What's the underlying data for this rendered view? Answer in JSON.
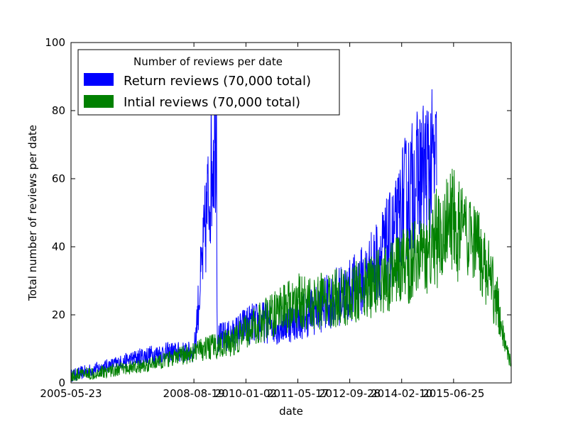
{
  "chart_data": {
    "type": "line",
    "xlabel": "date",
    "ylabel": "Total number of reviews per date",
    "xlim": [
      "2005-05-23",
      "2016-12-31"
    ],
    "ylim": [
      0,
      100
    ],
    "x_ticks": [
      "2005-05-23",
      "2008-08-19",
      "2010-01-02",
      "2011-05-17",
      "2012-09-28",
      "2014-02-10",
      "2015-06-25"
    ],
    "y_ticks": [
      0,
      20,
      40,
      60,
      80,
      100
    ],
    "grid": false,
    "legend": {
      "title": "Number of reviews per date",
      "placement": "top-left"
    },
    "series": [
      {
        "name": "Return reviews (70,000 total)",
        "color": "#0000ff",
        "x": [
          "2005-05-23",
          "2006-01-01",
          "2006-09-01",
          "2007-05-01",
          "2008-01-01",
          "2008-08-19",
          "2009-03-25",
          "2009-04-01",
          "2009-09-01",
          "2010-01-02",
          "2010-06-01",
          "2010-12-01",
          "2011-05-17",
          "2011-12-01",
          "2012-05-01",
          "2012-09-28",
          "2013-03-01",
          "2013-08-01",
          "2014-01-01",
          "2014-02-10",
          "2014-06-01",
          "2014-09-01",
          "2014-11-30",
          "2015-01-15"
        ],
        "values": [
          2,
          4,
          6,
          8,
          9,
          9,
          80,
          13,
          14,
          17,
          18,
          17,
          19,
          22,
          25,
          27,
          31,
          38,
          45,
          52,
          58,
          62,
          64,
          63
        ]
      },
      {
        "name": "Intial reviews (70,000 total)",
        "color": "#008000",
        "x": [
          "2005-05-23",
          "2006-01-01",
          "2006-09-01",
          "2007-05-01",
          "2008-01-01",
          "2008-08-19",
          "2009-04-01",
          "2009-09-01",
          "2010-01-02",
          "2010-06-01",
          "2010-12-01",
          "2011-05-17",
          "2011-12-01",
          "2012-05-01",
          "2012-09-28",
          "2013-03-01",
          "2013-08-01",
          "2014-01-01",
          "2014-02-10",
          "2014-06-01",
          "2014-11-01",
          "2015-03-01",
          "2015-06-25",
          "2015-11-01",
          "2016-03-01",
          "2016-06-01",
          "2016-09-01",
          "2016-12-31"
        ],
        "values": [
          2,
          3,
          4,
          5,
          7,
          9,
          11,
          12,
          15,
          18,
          21,
          24,
          24,
          25,
          26,
          28,
          30,
          32,
          33,
          37,
          40,
          44,
          47,
          41,
          37,
          31,
          22,
          5
        ]
      }
    ]
  }
}
